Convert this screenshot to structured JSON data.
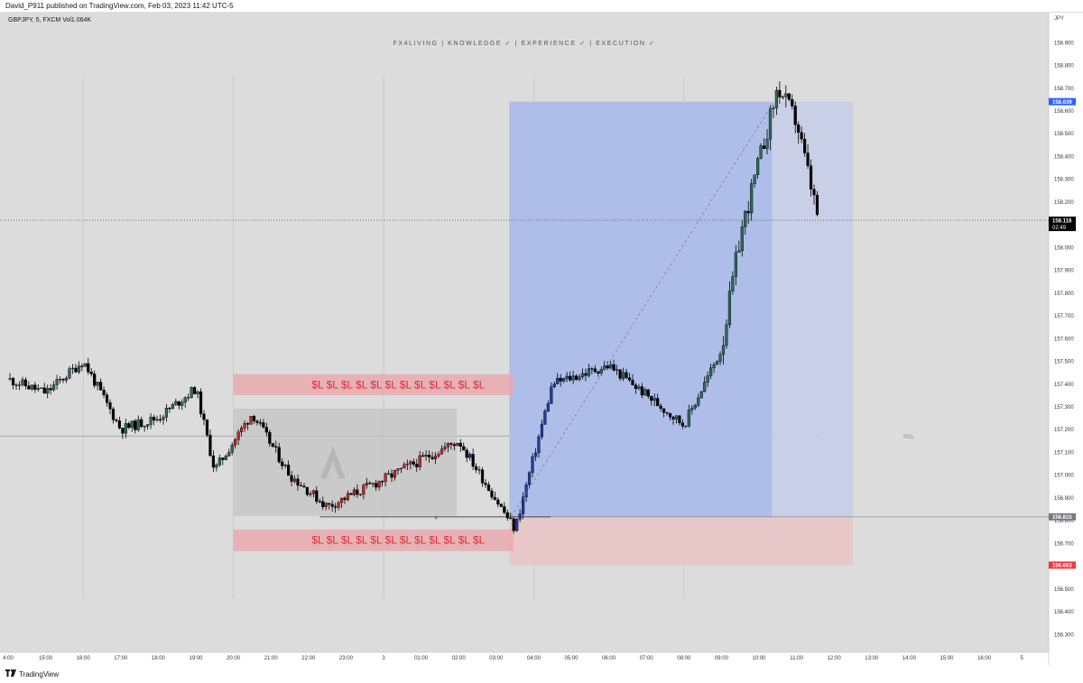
{
  "header": {
    "published": "David_P911 published on TradingView.com, Feb 03, 2023 11:42 UTC-5"
  },
  "legend": {
    "symbol": "GBPJPY, 5, FXCM",
    "volume": "Vol1.064K"
  },
  "watermark": "FX4LIVING | KNOWLEDGE ✓ | EXPERIENCE ✓ | EXECUTION ✓",
  "y_axis_unit": "JPY",
  "footer": {
    "brand": "TradingView",
    "logo_icon": "tradingview-logo-icon"
  },
  "annotations": {
    "sl_row": "$L $L $L $L $L $L $L $L $L $L $L $L",
    "pdl": "PDL",
    "x_mark": "x",
    "countdown": "02:49"
  },
  "price_tags": {
    "current": "158.118",
    "target": "158.639",
    "entry": "156.815",
    "stop": "156.603"
  },
  "colors": {
    "background": "#dcdcdc",
    "bull_default": "#2e6b5e",
    "bull_red_segment": "#c62828",
    "bull_blue_segment": "#1e3ea8",
    "bear": "#000000",
    "profit_zone": "#aabbe9",
    "loss_zone": "#e8c4c4",
    "sl_box": "#e9a8ad",
    "range_box": "#c4c4c4",
    "target_tag": "#2962ff",
    "stop_tag": "#f23645",
    "current_tag": "#000000",
    "entry_tag": "#787b86"
  },
  "chart_data": {
    "type": "candlestick",
    "symbol": "GBPJPY",
    "timeframe": "5",
    "y_ticks": [
      156.3,
      156.4,
      156.5,
      156.6,
      156.7,
      156.8,
      156.9,
      157.0,
      157.1,
      157.2,
      157.3,
      157.4,
      157.5,
      157.6,
      157.7,
      157.8,
      157.9,
      158.0,
      158.1,
      158.2,
      158.3,
      158.4,
      158.5,
      158.6,
      158.7,
      158.8,
      158.9
    ],
    "y_tick_labels": [
      "156.300",
      "156.400",
      "156.500",
      "156.600",
      "156.700",
      "156.800",
      "156.900",
      "157.000",
      "157.100",
      "157.200",
      "157.300",
      "157.400",
      "157.500",
      "157.600",
      "157.700",
      "157.800",
      "157.900",
      "158.000",
      "158.100",
      "158.200",
      "158.300",
      "158.400",
      "158.500",
      "158.600",
      "158.700",
      "158.800",
      "158.900"
    ],
    "ylim": [
      156.22,
      159.03
    ],
    "x_range_hours": [
      -10.0,
      15.0
    ],
    "x_labels": [
      "4:00",
      "15:00",
      "16:00",
      "17:00",
      "18:00",
      "19:00",
      "20:00",
      "21:00",
      "22:00",
      "23:00",
      "3",
      "01:00",
      "02:00",
      "03:00",
      "04:00",
      "05:00",
      "06:00",
      "07:00",
      "08:00",
      "09:00",
      "10:00",
      "11:00",
      "12:00",
      "13:00",
      "14:00",
      "15:00",
      "16:00",
      "5"
    ],
    "x_label_hours": [
      -10,
      -9,
      -8,
      -7,
      -6,
      -5,
      -4,
      -3,
      -2,
      -1,
      0,
      1,
      2,
      3,
      4,
      5,
      6,
      7,
      8,
      9,
      10,
      11,
      12,
      13,
      14,
      15,
      16,
      17
    ],
    "vertical_grid_hours": [
      -8,
      -4,
      0,
      4,
      8
    ],
    "horizontal_grid_levels": [
      157.17,
      158.118
    ],
    "key_points": [
      {
        "time": "14:00",
        "price": 157.42
      },
      {
        "time": "15:00",
        "price": 157.36
      },
      {
        "time": "16:00",
        "price": 157.5
      },
      {
        "time": "17:00",
        "price": 157.2
      },
      {
        "time": "18:00",
        "price": 157.25
      },
      {
        "time": "19:00",
        "price": 157.38
      },
      {
        "time": "19:30",
        "price": 157.02
      },
      {
        "time": "20:30",
        "price": 157.27
      },
      {
        "time": "21:30",
        "price": 157.0
      },
      {
        "time": "22:30",
        "price": 156.86
      },
      {
        "time": "00:00",
        "price": 156.98
      },
      {
        "time": "02:00",
        "price": 157.15
      },
      {
        "time": "03:30",
        "price": 156.76
      },
      {
        "time": "04:30",
        "price": 157.4
      },
      {
        "time": "06:00",
        "price": 157.48
      },
      {
        "time": "08:00",
        "price": 157.22
      },
      {
        "time": "09:00",
        "price": 157.55
      },
      {
        "time": "09:30",
        "price": 158.05
      },
      {
        "time": "10:30",
        "price": 158.7
      },
      {
        "time": "11:00",
        "price": 158.55
      },
      {
        "time": "11:35",
        "price": 158.118
      }
    ],
    "red_segment_hours": [
      -4.0,
      2.0
    ],
    "blue_segment_hours": [
      2.0,
      5.0
    ],
    "position": {
      "type": "long",
      "entry": 156.815,
      "target": 158.639,
      "stop": 156.603,
      "start_hour": 3.35,
      "end_hour": 12.5
    },
    "sl_zones": [
      {
        "top": 157.442,
        "bottom": 157.35,
        "start_hour": -4.0,
        "end_hour": 3.45
      },
      {
        "top": 156.76,
        "bottom": 156.665,
        "start_hour": -4.0,
        "end_hour": 3.45
      }
    ],
    "range_box": {
      "top": 157.29,
      "bottom": 156.82,
      "start_hour": -4.0,
      "end_hour": 1.95
    },
    "sweep_line_level": 156.815,
    "pdl_level": 157.17
  }
}
